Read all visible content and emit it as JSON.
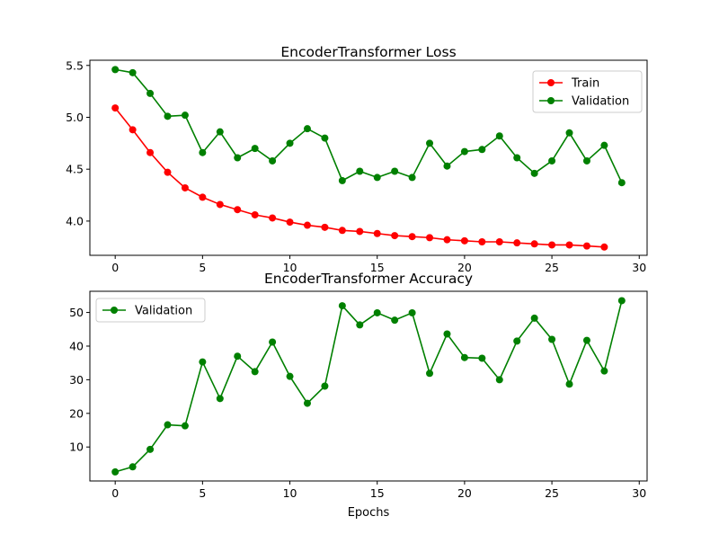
{
  "colors": {
    "train": "#ff0000",
    "validation": "#008000",
    "axes": "#000000",
    "legend_border": "#cccccc"
  },
  "chart_data": [
    {
      "type": "line",
      "title": "EncoderTransformer Loss",
      "xlabel": "",
      "ylabel": "",
      "xlim": [
        -1.45,
        30.45
      ],
      "ylim": [
        3.67,
        5.55
      ],
      "xticks": [
        0,
        5,
        10,
        15,
        20,
        25,
        30
      ],
      "yticks": [
        4.0,
        4.5,
        5.0,
        5.5
      ],
      "ytick_labels": [
        "4.0",
        "4.5",
        "5.0",
        "5.5"
      ],
      "grid": false,
      "legend_position": "top-right",
      "series": [
        {
          "name": "Train",
          "color": "#ff0000",
          "marker": "circle",
          "x": [
            0,
            1,
            2,
            3,
            4,
            5,
            6,
            7,
            8,
            9,
            10,
            11,
            12,
            13,
            14,
            15,
            16,
            17,
            18,
            19,
            20,
            21,
            22,
            23,
            24,
            25,
            26,
            27,
            28
          ],
          "y": [
            5.09,
            4.88,
            4.66,
            4.47,
            4.32,
            4.23,
            4.16,
            4.11,
            4.06,
            4.03,
            3.99,
            3.96,
            3.94,
            3.91,
            3.9,
            3.88,
            3.86,
            3.85,
            3.84,
            3.82,
            3.81,
            3.8,
            3.8,
            3.79,
            3.78,
            3.77,
            3.77,
            3.76,
            3.75
          ]
        },
        {
          "name": "Validation",
          "color": "#008000",
          "marker": "circle",
          "x": [
            0,
            1,
            2,
            3,
            4,
            5,
            6,
            7,
            8,
            9,
            10,
            11,
            12,
            13,
            14,
            15,
            16,
            17,
            18,
            19,
            20,
            21,
            22,
            23,
            24,
            25,
            26,
            27,
            28,
            29
          ],
          "y": [
            5.46,
            5.43,
            5.23,
            5.01,
            5.02,
            4.66,
            4.86,
            4.61,
            4.7,
            4.58,
            4.75,
            4.89,
            4.8,
            4.39,
            4.48,
            4.42,
            4.48,
            4.42,
            4.75,
            4.53,
            4.67,
            4.69,
            4.82,
            4.61,
            4.46,
            4.58,
            4.85,
            4.58,
            4.73,
            4.37
          ]
        }
      ]
    },
    {
      "type": "line",
      "title": "EncoderTransformer Accuracy",
      "xlabel": "Epochs",
      "ylabel": "",
      "xlim": [
        -1.45,
        30.45
      ],
      "ylim": [
        -0.1,
        56.3
      ],
      "xticks": [
        0,
        5,
        10,
        15,
        20,
        25,
        30
      ],
      "yticks": [
        10,
        20,
        30,
        40,
        50
      ],
      "ytick_labels": [
        "10",
        "20",
        "30",
        "40",
        "50"
      ],
      "grid": false,
      "legend_position": "top-left",
      "series": [
        {
          "name": "Validation",
          "color": "#008000",
          "marker": "circle",
          "x": [
            0,
            1,
            2,
            3,
            4,
            5,
            6,
            7,
            8,
            9,
            10,
            11,
            12,
            13,
            14,
            15,
            16,
            17,
            18,
            19,
            20,
            21,
            22,
            23,
            24,
            25,
            26,
            27,
            28,
            29
          ],
          "y": [
            2.6,
            4.1,
            9.3,
            16.6,
            16.3,
            35.3,
            24.4,
            37.0,
            32.4,
            41.2,
            31.0,
            23.0,
            28.1,
            52.0,
            46.3,
            49.9,
            47.7,
            49.9,
            31.9,
            43.6,
            36.6,
            36.4,
            30.0,
            41.5,
            48.3,
            42.0,
            28.7,
            41.7,
            32.6,
            53.5
          ]
        }
      ]
    }
  ]
}
